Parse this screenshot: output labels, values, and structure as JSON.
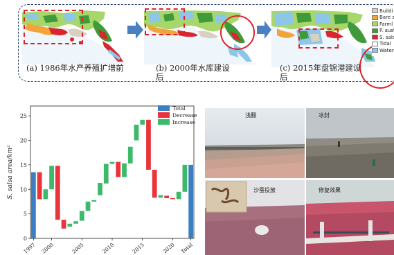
{
  "flow": {
    "captions": [
      {
        "line1": "(a) 1986年水产养殖扩增前",
        "line2": ""
      },
      {
        "line1": "(b) 2000年水库建设",
        "line2": "后"
      },
      {
        "line1": "(c) 2015年盘锦港建设",
        "line2": "后"
      }
    ],
    "legend": [
      {
        "label": "Buildi",
        "color": "#d9d0c0"
      },
      {
        "label": "Bare s",
        "color": "#f2a43a"
      },
      {
        "label": "Farml",
        "color": "#a7d66b"
      },
      {
        "label": "P. aust",
        "color": "#3f9a3a"
      },
      {
        "label": "S. sals",
        "color": "#d8262e"
      },
      {
        "label": "Tidal",
        "color": "#ffffff"
      },
      {
        "label": "Water",
        "color": "#8ec6e8"
      }
    ],
    "arrow_color": "#4a7fc1",
    "highlight_color": "#e0202a"
  },
  "chart_data": {
    "type": "waterfall",
    "ylabel": "S. salsa area/km²",
    "ylim": [
      0,
      27
    ],
    "yticks": [
      0,
      5,
      10,
      15,
      20,
      25
    ],
    "xticks": [
      "1997",
      "2000",
      "2005",
      "2010",
      "2015",
      "2020",
      "Total"
    ],
    "legend": [
      {
        "label": "Total",
        "color": "#3a7fc1"
      },
      {
        "label": "Decrease",
        "color": "#e8343a"
      },
      {
        "label": "Increase",
        "color": "#3cb96a"
      }
    ],
    "bars": [
      {
        "x": "1997",
        "kind": "total",
        "from": 0,
        "to": 13.5
      },
      {
        "x": "1998",
        "kind": "decrease",
        "from": 13.5,
        "to": 8.0
      },
      {
        "x": "1999",
        "kind": "increase",
        "from": 8.0,
        "to": 10.0
      },
      {
        "x": "2000",
        "kind": "increase",
        "from": 10.0,
        "to": 14.8
      },
      {
        "x": "2001",
        "kind": "decrease",
        "from": 14.8,
        "to": 3.8
      },
      {
        "x": "2002",
        "kind": "decrease",
        "from": 3.8,
        "to": 2.0
      },
      {
        "x": "2003",
        "kind": "increase",
        "from": 2.4,
        "to": 3.0
      },
      {
        "x": "2004",
        "kind": "increase",
        "from": 3.0,
        "to": 3.5
      },
      {
        "x": "2005",
        "kind": "increase",
        "from": 3.6,
        "to": 5.6
      },
      {
        "x": "2006",
        "kind": "increase",
        "from": 5.6,
        "to": 7.5
      },
      {
        "x": "2007",
        "kind": "increase",
        "from": 7.5,
        "to": 7.8
      },
      {
        "x": "2008",
        "kind": "increase",
        "from": 8.8,
        "to": 11.3
      },
      {
        "x": "2009",
        "kind": "increase",
        "from": 11.2,
        "to": 15.2
      },
      {
        "x": "2010",
        "kind": "increase",
        "from": 15.2,
        "to": 15.6
      },
      {
        "x": "2011",
        "kind": "decrease",
        "from": 15.6,
        "to": 12.5
      },
      {
        "x": "2012",
        "kind": "increase",
        "from": 12.5,
        "to": 15.3
      },
      {
        "x": "2013",
        "kind": "increase",
        "from": 15.3,
        "to": 18.7
      },
      {
        "x": "2014",
        "kind": "increase",
        "from": 20.0,
        "to": 23.2
      },
      {
        "x": "2015",
        "kind": "increase",
        "from": 23.2,
        "to": 24.2
      },
      {
        "x": "2016",
        "kind": "decrease",
        "from": 24.2,
        "to": 14.0
      },
      {
        "x": "2017",
        "kind": "decrease",
        "from": 14.0,
        "to": 8.3
      },
      {
        "x": "2018",
        "kind": "increase",
        "from": 8.3,
        "to": 8.8
      },
      {
        "x": "2019",
        "kind": "decrease",
        "from": 8.7,
        "to": 8.2
      },
      {
        "x": "2020",
        "kind": "decrease",
        "from": 8.2,
        "to": 8.0
      },
      {
        "x": "2021",
        "kind": "increase",
        "from": 8.0,
        "to": 9.5
      },
      {
        "x": "2022",
        "kind": "increase",
        "from": 9.5,
        "to": 15.0
      },
      {
        "x": "Total",
        "kind": "total",
        "from": 0,
        "to": 15.0
      }
    ]
  },
  "photos": {
    "labels": [
      "浅翻",
      "冰封",
      "沙蚕投放",
      "修复效果"
    ]
  }
}
